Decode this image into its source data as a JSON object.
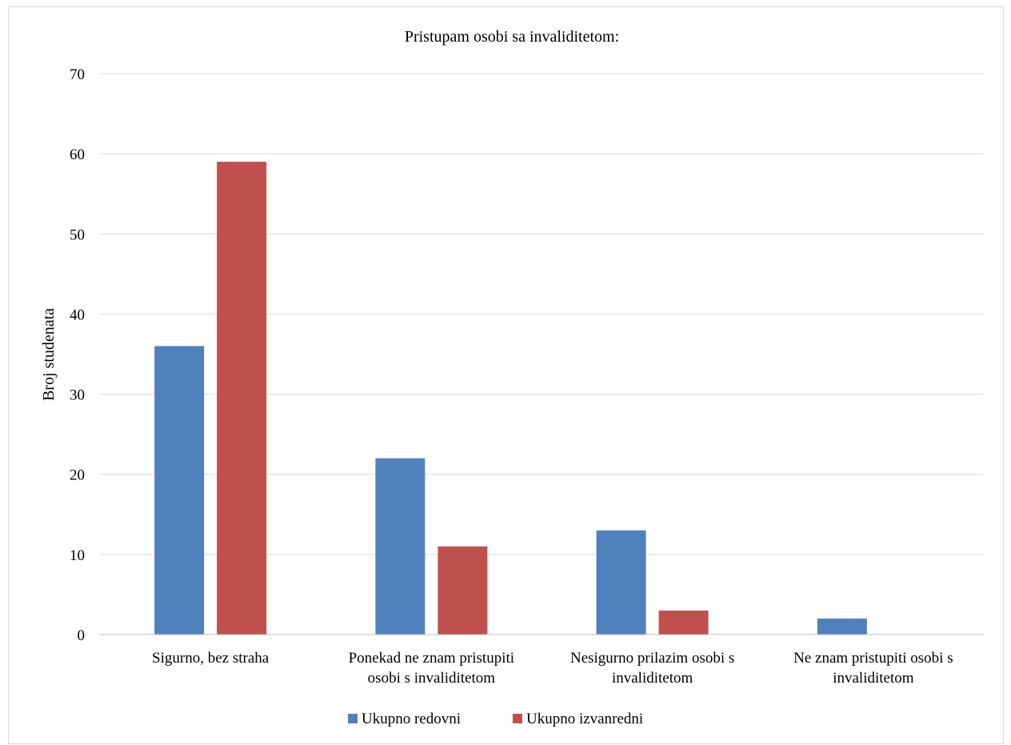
{
  "chart_data": {
    "type": "bar",
    "title": "Pristupam osobi sa invaliditetom:",
    "xlabel": "",
    "ylabel": "Broj studenata",
    "ylim": [
      0,
      70
    ],
    "yticks": [
      0,
      10,
      20,
      30,
      40,
      50,
      60,
      70
    ],
    "grid": true,
    "legend_position": "bottom",
    "categories": [
      [
        "Sigurno, bez straha"
      ],
      [
        "Ponekad ne znam pristupiti",
        "osobi s invaliditetom"
      ],
      [
        "Nesigurno prilazim osobi s",
        "invaliditetom"
      ],
      [
        "Ne znam pristupiti osobi s",
        "invaliditetom"
      ]
    ],
    "series": [
      {
        "name": "Ukupno redovni",
        "color": "#4f81bd",
        "values": [
          36,
          22,
          13,
          2
        ]
      },
      {
        "name": "Ukupno izvanredni",
        "color": "#c0504d",
        "values": [
          59,
          11,
          3,
          0
        ]
      }
    ]
  }
}
